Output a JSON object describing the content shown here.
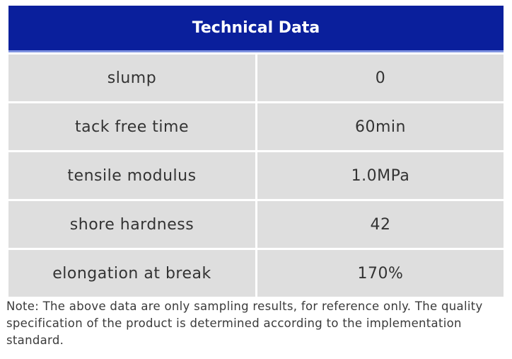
{
  "table": {
    "title": "Technical Data",
    "rows": [
      {
        "label": "slump",
        "value": "0"
      },
      {
        "label": "tack free time",
        "value": "60min"
      },
      {
        "label": "tensile modulus",
        "value": "1.0MPa"
      },
      {
        "label": "shore hardness",
        "value": "42"
      },
      {
        "label": "elongation at break",
        "value": "170%"
      }
    ]
  },
  "note": "Note: The above data are only sampling results, for reference only. The quality specification of the product is determined according to the implementation standard."
}
